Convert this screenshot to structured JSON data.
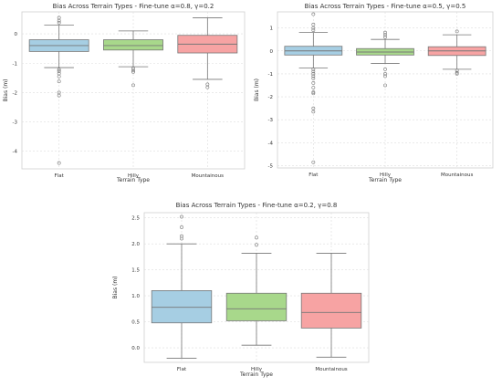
{
  "chart_data": [
    {
      "type": "box",
      "title": "Bias Across Terrain Types - Fine-tune α=0.8, γ=0.2",
      "xlabel": "Terrain Type",
      "ylabel": "Bias (m)",
      "ylim": [
        -4.6,
        0.75
      ],
      "yticks": [
        0,
        -1,
        -2,
        -3,
        -4
      ],
      "grid": true,
      "categories": [
        "Flat",
        "Hilly",
        "Mountainous"
      ],
      "colors": [
        "#a6cee3",
        "#a8d88b",
        "#f7a3a3"
      ],
      "boxes": [
        {
          "whisker_low": -1.15,
          "q1": -0.6,
          "median": -0.4,
          "q3": -0.2,
          "whisker_high": 0.3,
          "outliers": [
            0.55,
            0.45,
            0.38,
            -1.22,
            -1.27,
            -1.35,
            -1.45,
            -1.62,
            -2.0,
            -2.1,
            -4.4
          ]
        },
        {
          "whisker_low": -1.12,
          "q1": -0.55,
          "median": -0.4,
          "q3": -0.2,
          "whisker_high": 0.1,
          "outliers": [
            -1.18,
            -1.25,
            -1.3,
            -1.75
          ]
        },
        {
          "whisker_low": -1.55,
          "q1": -0.65,
          "median": -0.35,
          "q3": -0.05,
          "whisker_high": 0.55,
          "outliers": [
            -1.72,
            -1.82
          ]
        }
      ]
    },
    {
      "type": "box",
      "title": "Bias Across Terrain Types - Fine-tune α=0.5, γ=0.5",
      "xlabel": "Terrain Type",
      "ylabel": "Bias (m)",
      "ylim": [
        -5.1,
        1.7
      ],
      "yticks": [
        1,
        0,
        -1,
        -2,
        -3,
        -4,
        -5
      ],
      "grid": true,
      "categories": [
        "Flat",
        "Hilly",
        "Mountainous"
      ],
      "colors": [
        "#a6cee3",
        "#a8d88b",
        "#f7a3a3"
      ],
      "boxes": [
        {
          "whisker_low": -0.75,
          "q1": -0.18,
          "median": 0.0,
          "q3": 0.2,
          "whisker_high": 0.8,
          "outliers": [
            1.6,
            1.15,
            1.0,
            0.9,
            -0.8,
            -0.9,
            -1.0,
            -1.1,
            -1.2,
            -1.4,
            -1.6,
            -1.8,
            -1.85,
            -2.5,
            -2.65,
            -4.85
          ]
        },
        {
          "whisker_low": -0.55,
          "q1": -0.18,
          "median": -0.05,
          "q3": 0.1,
          "whisker_high": 0.5,
          "outliers": [
            0.8,
            0.7,
            0.6,
            -0.8,
            -1.0,
            -1.1,
            -1.5
          ]
        },
        {
          "whisker_low": -0.8,
          "q1": -0.2,
          "median": 0.0,
          "q3": 0.18,
          "whisker_high": 0.7,
          "outliers": [
            0.85,
            -0.85,
            -0.95,
            -1.0
          ]
        }
      ]
    },
    {
      "type": "box",
      "title": "Bias Across Terrain Types - Fine-tune α=0.2, γ=0.8",
      "xlabel": "Terrain Type",
      "ylabel": "Bias (m)",
      "ylim": [
        -0.28,
        2.6
      ],
      "yticks": [
        2.5,
        2.0,
        1.5,
        1.0,
        0.5,
        0.0
      ],
      "grid": true,
      "categories": [
        "Flat",
        "Hilly",
        "Mountainous"
      ],
      "colors": [
        "#a6cee3",
        "#a8d88b",
        "#f7a3a3"
      ],
      "boxes": [
        {
          "whisker_low": -0.2,
          "q1": 0.48,
          "median": 0.78,
          "q3": 1.1,
          "whisker_high": 2.0,
          "outliers": [
            2.52,
            2.32,
            2.15,
            2.1
          ]
        },
        {
          "whisker_low": 0.05,
          "q1": 0.52,
          "median": 0.75,
          "q3": 1.05,
          "whisker_high": 1.82,
          "outliers": [
            2.12,
            1.98
          ]
        },
        {
          "whisker_low": -0.18,
          "q1": 0.38,
          "median": 0.68,
          "q3": 1.05,
          "whisker_high": 1.82,
          "outliers": []
        }
      ]
    }
  ]
}
